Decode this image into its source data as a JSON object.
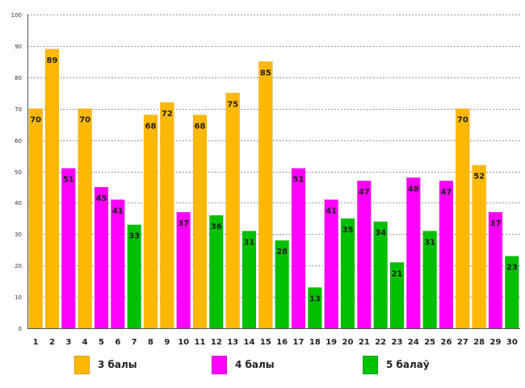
{
  "chart_data": {
    "type": "bar",
    "title": "",
    "xlabel": "",
    "ylabel": "",
    "ylim": [
      0,
      100
    ],
    "yticks": [
      0,
      10,
      20,
      30,
      40,
      50,
      60,
      70,
      80,
      90,
      100
    ],
    "grid": true,
    "categories": [
      "1",
      "2",
      "3",
      "4",
      "5",
      "6",
      "7",
      "8",
      "9",
      "10",
      "11",
      "12",
      "13",
      "14",
      "15",
      "16",
      "17",
      "18",
      "19",
      "20",
      "21",
      "22",
      "23",
      "24",
      "25",
      "26",
      "27",
      "28",
      "29",
      "30"
    ],
    "values": [
      70,
      89,
      51,
      70,
      45,
      41,
      33,
      68,
      72,
      37,
      68,
      36,
      75,
      31,
      85,
      28,
      51,
      13,
      41,
      35,
      47,
      34,
      21,
      48,
      31,
      47,
      70,
      52,
      37,
      23
    ],
    "groups": [
      0,
      0,
      1,
      0,
      1,
      1,
      2,
      0,
      0,
      1,
      0,
      2,
      0,
      2,
      0,
      2,
      1,
      2,
      1,
      2,
      1,
      2,
      2,
      1,
      2,
      1,
      0,
      0,
      1,
      2
    ],
    "series": [
      {
        "name": "3 балы",
        "color": "#FFB800"
      },
      {
        "name": "4 балы",
        "color": "#FF00FF"
      },
      {
        "name": "5 балаў",
        "color": "#00C000"
      }
    ],
    "legend_position": "bottom"
  }
}
